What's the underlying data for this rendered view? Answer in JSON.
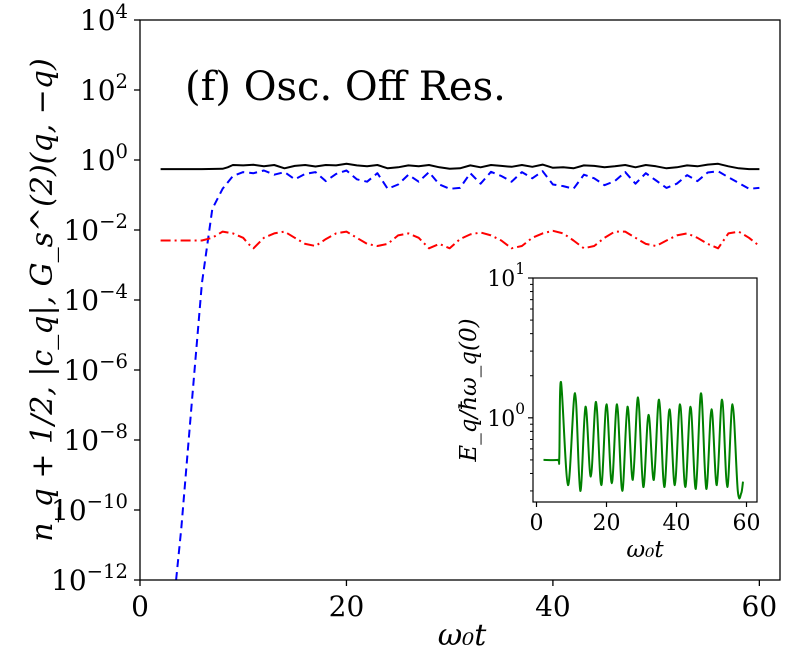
{
  "chart_data": [
    {
      "type": "line",
      "panel": "main",
      "yscale": "log",
      "annotation": "(f) Osc. Off Res.",
      "xlabel": "ω₀t",
      "ylabel": "n_q + 1/2,  |c_q|,  G_s^(2)(q, −q)",
      "xlim": [
        0,
        62
      ],
      "ylim_exp": [
        -12,
        4
      ],
      "xticks": [
        {
          "value": 0,
          "label": "0"
        },
        {
          "value": 20,
          "label": "20"
        },
        {
          "value": 40,
          "label": "40"
        },
        {
          "value": 60,
          "label": "60"
        }
      ],
      "yticks": [
        {
          "exp": 4,
          "label": "10^4"
        },
        {
          "exp": 2,
          "label": "10^2"
        },
        {
          "exp": 0,
          "label": "10^0"
        },
        {
          "exp": -2,
          "label": "10^-2"
        },
        {
          "exp": -4,
          "label": "10^-4"
        },
        {
          "exp": -6,
          "label": "10^-6"
        },
        {
          "exp": -8,
          "label": "10^-8"
        },
        {
          "exp": -10,
          "label": "10^-10"
        },
        {
          "exp": -12,
          "label": "10^-12"
        }
      ],
      "series": [
        {
          "name": "black solid",
          "color": "#000000",
          "dash": "",
          "x": [
            2,
            4,
            6,
            8,
            8.5,
            9,
            10,
            11,
            12,
            13,
            14,
            15,
            16,
            17,
            18,
            19,
            20,
            21,
            22,
            23,
            24,
            25,
            26,
            27,
            28,
            29,
            30,
            31,
            32,
            33,
            34,
            35,
            36,
            37,
            38,
            39,
            40,
            41,
            42,
            43,
            44,
            45,
            46,
            47,
            48,
            49,
            50,
            51,
            52,
            53,
            54,
            55,
            56,
            57,
            58,
            59,
            60
          ],
          "y": [
            0.55,
            0.55,
            0.55,
            0.56,
            0.62,
            0.72,
            0.7,
            0.73,
            0.66,
            0.72,
            0.58,
            0.68,
            0.72,
            0.65,
            0.72,
            0.7,
            0.78,
            0.7,
            0.66,
            0.72,
            0.58,
            0.62,
            0.7,
            0.66,
            0.72,
            0.62,
            0.56,
            0.58,
            0.7,
            0.62,
            0.72,
            0.68,
            0.64,
            0.72,
            0.64,
            0.74,
            0.6,
            0.62,
            0.58,
            0.7,
            0.68,
            0.62,
            0.66,
            0.72,
            0.62,
            0.72,
            0.66,
            0.58,
            0.62,
            0.7,
            0.66,
            0.74,
            0.78,
            0.66,
            0.58,
            0.55,
            0.55
          ]
        },
        {
          "name": "blue dashed",
          "color": "#0000ff",
          "dash": "8,5",
          "x": [
            3.5,
            4,
            5,
            6,
            7,
            8,
            9,
            10,
            11,
            12,
            13,
            14,
            15,
            16,
            17,
            18,
            19,
            20,
            21,
            22,
            23,
            24,
            25,
            26,
            27,
            28,
            29,
            30,
            31,
            32,
            33,
            34,
            35,
            36,
            37,
            38,
            39,
            40,
            41,
            42,
            43,
            44,
            45,
            46,
            47,
            48,
            49,
            50,
            51,
            52,
            53,
            54,
            55,
            56,
            57,
            58,
            59,
            60
          ],
          "y": [
            1e-12,
            3e-11,
            1e-07,
            0.0003,
            0.04,
            0.15,
            0.35,
            0.45,
            0.42,
            0.5,
            0.38,
            0.45,
            0.28,
            0.4,
            0.45,
            0.25,
            0.4,
            0.5,
            0.28,
            0.24,
            0.42,
            0.15,
            0.2,
            0.38,
            0.24,
            0.45,
            0.2,
            0.15,
            0.16,
            0.42,
            0.21,
            0.46,
            0.35,
            0.24,
            0.45,
            0.3,
            0.48,
            0.2,
            0.18,
            0.15,
            0.38,
            0.3,
            0.19,
            0.25,
            0.45,
            0.21,
            0.42,
            0.26,
            0.16,
            0.21,
            0.37,
            0.25,
            0.44,
            0.48,
            0.32,
            0.22,
            0.15,
            0.16
          ]
        },
        {
          "name": "red dash-dot",
          "color": "#ff0000",
          "dash": "10,4,2,4",
          "x": [
            2,
            4,
            6,
            7,
            8,
            9,
            10,
            10.5,
            11,
            12,
            13,
            14,
            15,
            16,
            17,
            18,
            19,
            20,
            21,
            22,
            23,
            24,
            25,
            26,
            27,
            28,
            29,
            30,
            31,
            32,
            33,
            34,
            35,
            36,
            37,
            38,
            39,
            40,
            41,
            42,
            43,
            44,
            45,
            46,
            47,
            48,
            49,
            50,
            51,
            52,
            53,
            54,
            55,
            56,
            57,
            58,
            59,
            60
          ],
          "y": [
            0.005,
            0.005,
            0.005,
            0.006,
            0.009,
            0.008,
            0.006,
            0.004,
            0.003,
            0.006,
            0.008,
            0.009,
            0.006,
            0.004,
            0.0035,
            0.0055,
            0.008,
            0.009,
            0.006,
            0.004,
            0.0035,
            0.004,
            0.007,
            0.008,
            0.006,
            0.003,
            0.004,
            0.003,
            0.0055,
            0.0075,
            0.0085,
            0.007,
            0.005,
            0.003,
            0.0035,
            0.006,
            0.008,
            0.0095,
            0.008,
            0.005,
            0.003,
            0.0035,
            0.006,
            0.009,
            0.009,
            0.006,
            0.004,
            0.0035,
            0.005,
            0.007,
            0.008,
            0.006,
            0.004,
            0.003,
            0.008,
            0.009,
            0.006,
            0.0035
          ]
        }
      ]
    },
    {
      "type": "line",
      "panel": "inset",
      "yscale": "log",
      "xlabel": "ω₀t",
      "ylabel": "E_q/ħω_q(0)",
      "xlim": [
        -1,
        63
      ],
      "ylim": [
        0.25,
        10
      ],
      "xticks": [
        {
          "value": 0,
          "label": "0"
        },
        {
          "value": 20,
          "label": "20"
        },
        {
          "value": 40,
          "label": "40"
        },
        {
          "value": 60,
          "label": "60"
        }
      ],
      "yticks": [
        {
          "value": 10,
          "label": "10^1"
        },
        {
          "value": 1,
          "label": "10^0"
        }
      ],
      "series": [
        {
          "name": "green solid",
          "color": "#008000",
          "dash": "",
          "peaks": [
            [
              7,
              1.8
            ],
            [
              11,
              1.5
            ],
            [
              14,
              1.2
            ],
            [
              17,
              1.3
            ],
            [
              20,
              1.25
            ],
            [
              23,
              1.25
            ],
            [
              26,
              1.2
            ],
            [
              29,
              1.4
            ],
            [
              32,
              1.05
            ],
            [
              35,
              1.35
            ],
            [
              38,
              1.15
            ],
            [
              41,
              1.25
            ],
            [
              44,
              1.2
            ],
            [
              47,
              1.5
            ],
            [
              50,
              1.15
            ],
            [
              53,
              1.35
            ],
            [
              56,
              1.25
            ]
          ],
          "troughs": [
            [
              9,
              0.33
            ],
            [
              12.5,
              0.3
            ],
            [
              15.5,
              0.38
            ],
            [
              18.5,
              0.33
            ],
            [
              21.5,
              0.34
            ],
            [
              24.5,
              0.3
            ],
            [
              27.5,
              0.36
            ],
            [
              30.5,
              0.32
            ],
            [
              33.5,
              0.36
            ],
            [
              36.5,
              0.32
            ],
            [
              39.5,
              0.33
            ],
            [
              42.5,
              0.32
            ],
            [
              45.5,
              0.31
            ],
            [
              48.5,
              0.31
            ],
            [
              51.5,
              0.33
            ],
            [
              54.5,
              0.32
            ],
            [
              57.5,
              0.3
            ]
          ],
          "x": [
            2,
            6,
            6.5
          ],
          "y": [
            0.5,
            0.5,
            0.52
          ],
          "x_end": [
            58.5,
            59
          ],
          "y_end": [
            0.29,
            0.35
          ]
        }
      ]
    }
  ]
}
